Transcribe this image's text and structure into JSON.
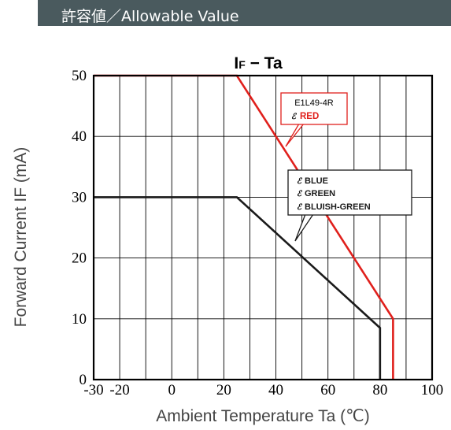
{
  "header": {
    "title": "許容値／Allowable Value"
  },
  "chart_data": {
    "type": "line",
    "title": "I F − Ta",
    "title_main": "I",
    "title_sub": "F",
    "title_rest": " − Ta",
    "xlabel": "Ambient Temperature  Ta (℃)",
    "ylabel": "Forward Current  IF (mA)",
    "xlim": [
      -30,
      100
    ],
    "ylim": [
      0,
      50
    ],
    "xticks": [
      -30,
      -20,
      0,
      20,
      40,
      60,
      80,
      100
    ],
    "xtick_labels": [
      "-30",
      "-20",
      "0",
      "20",
      "40",
      "60",
      "80",
      "100"
    ],
    "yticks": [
      0,
      10,
      20,
      30,
      40,
      50
    ],
    "ytick_labels": [
      "0",
      "10",
      "20",
      "30",
      "40",
      "50"
    ],
    "grid": true,
    "series": [
      {
        "color": "#e0201c",
        "x": [
          -30,
          25,
          85,
          85
        ],
        "y": [
          50,
          50,
          10,
          0
        ]
      },
      {
        "color": "#1a1a1a",
        "x": [
          -30,
          25,
          80,
          80
        ],
        "y": [
          30,
          30,
          8.5,
          0
        ]
      }
    ],
    "annotations": {
      "red_box": {
        "model": "E1L49-4R",
        "label": "RED"
      },
      "black_box": {
        "labels": [
          "BLUE",
          "GREEN",
          "BLUISH-GREEN"
        ]
      }
    }
  }
}
